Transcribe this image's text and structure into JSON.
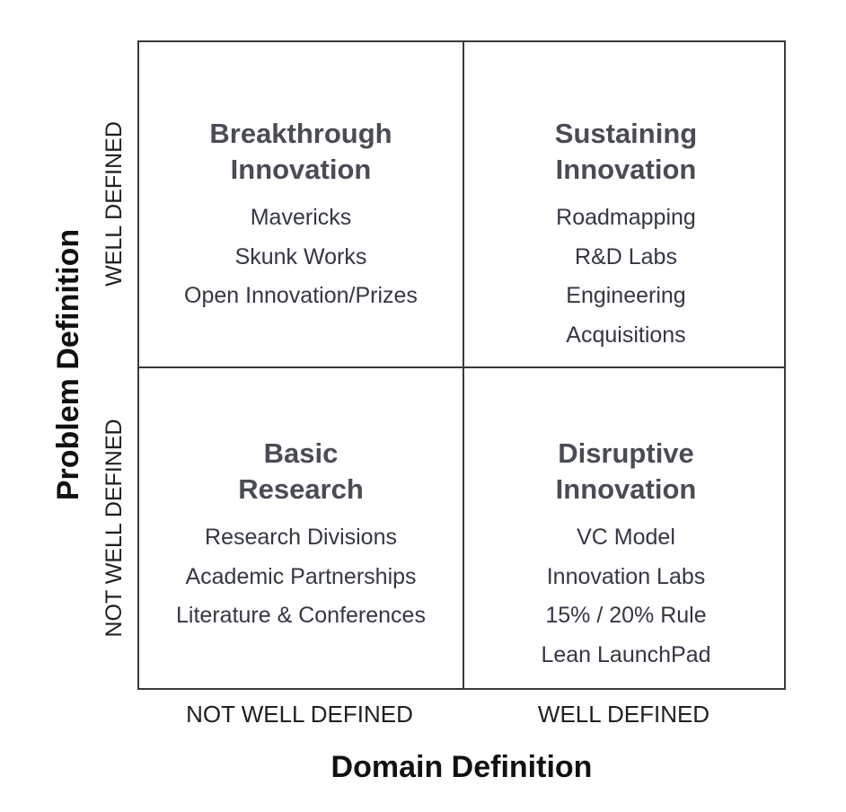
{
  "diagram": {
    "type": "2x2 matrix",
    "x_axis": {
      "title": "Domain Definition",
      "labels": [
        "NOT WELL DEFINED",
        "WELL DEFINED"
      ]
    },
    "y_axis": {
      "title": "Problem Definition",
      "labels_top_to_bottom": [
        "WELL DEFINED",
        "NOT WELL DEFINED"
      ]
    },
    "quadrants": {
      "top_left": {
        "title_line1": "Breakthrough",
        "title_line2": "Innovation",
        "items": [
          "Mavericks",
          "Skunk Works",
          "Open Innovation/Prizes"
        ]
      },
      "top_right": {
        "title_line1": "Sustaining",
        "title_line2": "Innovation",
        "items": [
          "Roadmapping",
          "R&D Labs",
          "Engineering",
          "Acquisitions"
        ]
      },
      "bottom_left": {
        "title_line1": "Basic",
        "title_line2": "Research",
        "items": [
          "Research Divisions",
          "Academic Partnerships",
          "Literature & Conferences"
        ]
      },
      "bottom_right": {
        "title_line1": "Disruptive",
        "title_line2": "Innovation",
        "items": [
          "VC Model",
          "Innovation Labs",
          "15% / 20% Rule",
          "Lean LaunchPad"
        ]
      }
    },
    "colors": {
      "border": "#3a3a3a",
      "quadrant_title": "#4a4c55",
      "item_text": "#343744",
      "axis_title": "#111111"
    }
  }
}
